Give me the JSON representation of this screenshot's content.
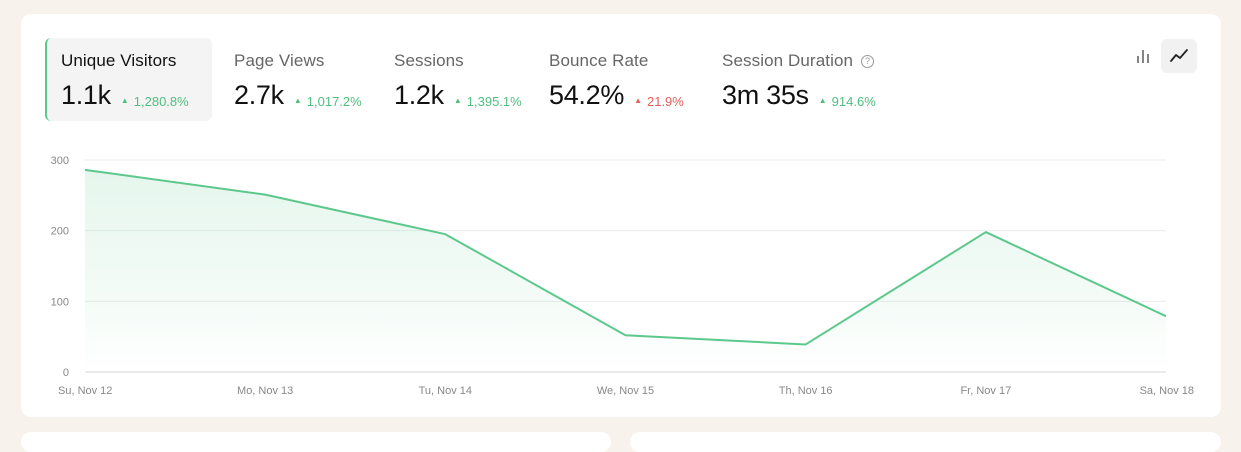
{
  "metrics": [
    {
      "label": "Unique Visitors",
      "value": "1.1k",
      "change": "1,280.8%",
      "direction": "up",
      "active": true
    },
    {
      "label": "Page Views",
      "value": "2.7k",
      "change": "1,017.2%",
      "direction": "up",
      "active": false
    },
    {
      "label": "Sessions",
      "value": "1.2k",
      "change": "1,395.1%",
      "direction": "up",
      "active": false
    },
    {
      "label": "Bounce Rate",
      "value": "54.2%",
      "change": "21.9%",
      "direction": "up-negative",
      "active": false
    },
    {
      "label": "Session Duration",
      "value": "3m 35s",
      "change": "914.6%",
      "direction": "up",
      "active": false,
      "help": "?"
    }
  ],
  "chart_toggles": {
    "bar": "bar-chart-icon",
    "line": "line-chart-icon",
    "selected": "line"
  },
  "chart_data": {
    "type": "area",
    "categories": [
      "Su, Nov 12",
      "Mo, Nov 13",
      "Tu, Nov 14",
      "We, Nov 15",
      "Th, Nov 16",
      "Fr, Nov 17",
      "Sa, Nov 18"
    ],
    "series": [
      {
        "values": [
          286,
          251,
          195,
          52,
          39,
          198,
          79
        ]
      }
    ],
    "ylim": [
      0,
      300
    ],
    "yticks": [
      0,
      100,
      200,
      300
    ],
    "grid": true,
    "line_color": "#5cc88c"
  },
  "colors": {
    "up": "#4fbf7f",
    "down": "#e2615d",
    "accent": "#5cc88c"
  }
}
